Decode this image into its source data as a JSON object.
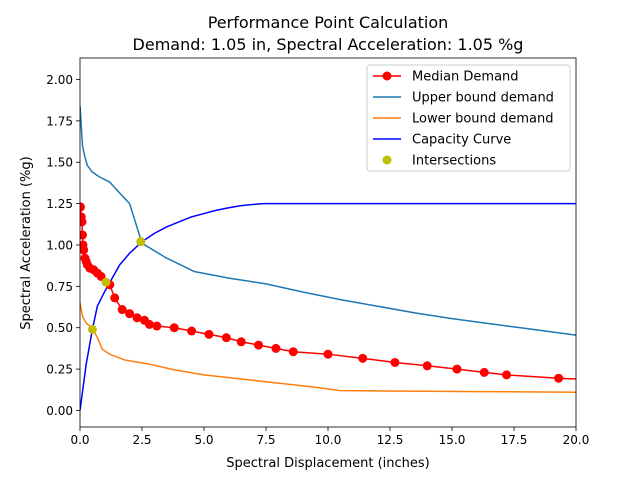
{
  "chart_data": {
    "type": "line",
    "title_line1": "Performance Point Calculation",
    "title_line2": "Demand: 1.05 in, Spectral Acceleration: 1.05 %g",
    "xlabel": "Spectral Displacement (inches)",
    "ylabel": "Spectral Acceleration (%g)",
    "xlim": [
      0,
      20
    ],
    "ylim": [
      -0.1,
      2.13
    ],
    "xticks": [
      0,
      2.5,
      5,
      7.5,
      10,
      12.5,
      15,
      17.5,
      20
    ],
    "xtick_labels": [
      "0.0",
      "2.5",
      "5.0",
      "7.5",
      "10.0",
      "12.5",
      "15.0",
      "17.5",
      "20.0"
    ],
    "yticks": [
      0,
      0.25,
      0.5,
      0.75,
      1.0,
      1.25,
      1.5,
      1.75,
      2.0
    ],
    "ytick_labels": [
      "0.00",
      "0.25",
      "0.50",
      "0.75",
      "1.00",
      "1.25",
      "1.50",
      "1.75",
      "2.00"
    ],
    "grid": false,
    "legend_position": "upper-right",
    "series": [
      {
        "name": "Median Demand",
        "color": "#ff0000",
        "marker": "circle",
        "x": [
          0.02,
          0.05,
          0.08,
          0.1,
          0.12,
          0.15,
          0.2,
          0.25,
          0.3,
          0.4,
          0.55,
          0.7,
          0.85,
          1.2,
          1.4,
          1.7,
          2.0,
          2.3,
          2.6,
          2.8,
          3.1,
          3.8,
          4.5,
          5.2,
          5.9,
          6.5,
          7.2,
          7.9,
          8.6,
          10.0,
          11.4,
          12.7,
          14.0,
          15.2,
          16.3,
          17.2,
          19.3,
          20.0
        ],
        "y": [
          1.23,
          1.17,
          1.14,
          1.06,
          1.0,
          0.97,
          0.92,
          0.9,
          0.88,
          0.86,
          0.85,
          0.83,
          0.81,
          0.76,
          0.68,
          0.61,
          0.585,
          0.56,
          0.545,
          0.52,
          0.51,
          0.5,
          0.48,
          0.46,
          0.44,
          0.415,
          0.395,
          0.375,
          0.355,
          0.34,
          0.315,
          0.29,
          0.27,
          0.25,
          0.23,
          0.215,
          0.195,
          0.19
        ],
        "marker_skip_last": true
      },
      {
        "name": "Upper bound demand",
        "color": "#1f77b4",
        "marker": "none",
        "x": [
          0,
          0.1,
          0.2,
          0.3,
          0.5,
          0.8,
          1.2,
          1.5,
          2.0,
          2.5,
          3.5,
          4.6,
          6.0,
          7.5,
          9.0,
          10.5,
          12.0,
          13.5,
          15.0,
          16.5,
          18.0,
          19.5,
          20.0
        ],
        "y": [
          1.84,
          1.6,
          1.53,
          1.48,
          1.44,
          1.41,
          1.38,
          1.33,
          1.25,
          1.01,
          0.92,
          0.84,
          0.8,
          0.765,
          0.715,
          0.67,
          0.63,
          0.59,
          0.555,
          0.525,
          0.495,
          0.465,
          0.455
        ]
      },
      {
        "name": "Lower bound demand",
        "color": "#ff7f0e",
        "marker": "none",
        "x": [
          0,
          0.1,
          0.2,
          0.3,
          0.5,
          0.7,
          0.9,
          1.2,
          1.8,
          2.8,
          3.8,
          5.0,
          6.5,
          8.0,
          9.5,
          10.5,
          12.0,
          14.0,
          16.0,
          18.0,
          20.0
        ],
        "y": [
          0.65,
          0.57,
          0.54,
          0.52,
          0.5,
          0.44,
          0.37,
          0.34,
          0.305,
          0.28,
          0.245,
          0.215,
          0.19,
          0.165,
          0.14,
          0.12,
          0.118,
          0.116,
          0.114,
          0.112,
          0.11
        ]
      },
      {
        "name": "Capacity Curve",
        "color": "#0000ff",
        "marker": "none",
        "x": [
          0,
          0.25,
          0.5,
          0.7,
          1.0,
          1.3,
          1.6,
          2.0,
          2.5,
          3.0,
          3.5,
          4.0,
          4.5,
          5.0,
          5.5,
          6.0,
          6.5,
          7.0,
          7.4,
          8.0,
          10.0,
          12.5,
          15.0,
          17.5,
          20.0
        ],
        "y": [
          0.0,
          0.28,
          0.49,
          0.63,
          0.72,
          0.8,
          0.88,
          0.95,
          1.02,
          1.07,
          1.11,
          1.14,
          1.17,
          1.19,
          1.21,
          1.225,
          1.238,
          1.245,
          1.25,
          1.25,
          1.25,
          1.25,
          1.25,
          1.25,
          1.25
        ]
      },
      {
        "name": "Intersections",
        "color": "#bfbf00",
        "marker": "circle",
        "line": false,
        "x": [
          0.5,
          1.05,
          2.45
        ],
        "y": [
          0.49,
          0.775,
          1.02
        ]
      }
    ]
  }
}
